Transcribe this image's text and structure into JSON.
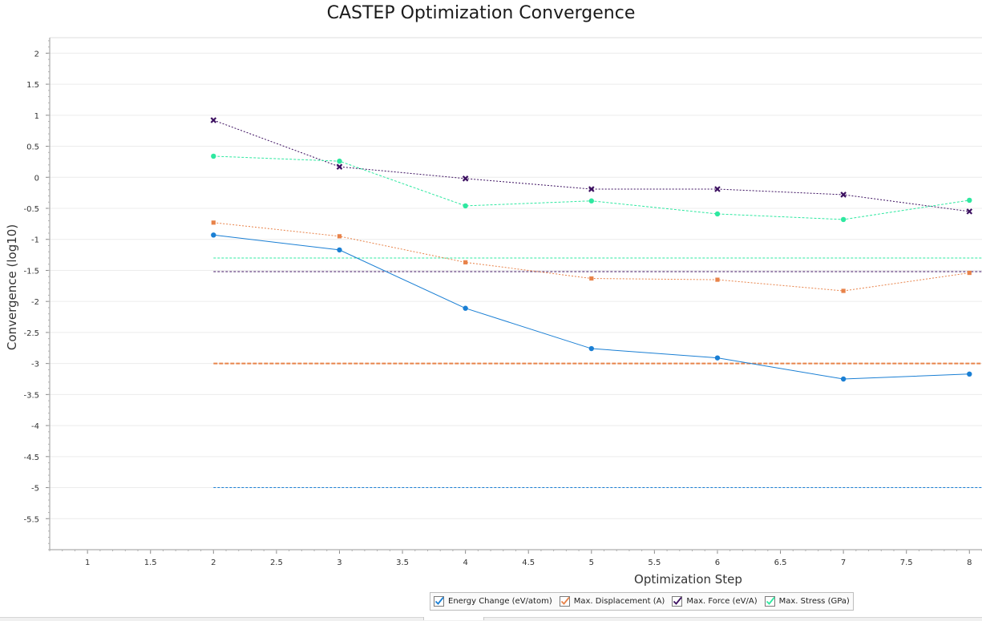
{
  "chart_data": {
    "type": "line",
    "title": "CASTEP Optimization Convergence",
    "xlabel": "Optimization Step",
    "ylabel": "Convergence (log10)",
    "xlim": [
      0.7,
      8.1
    ],
    "ylim": [
      -6.0,
      2.25
    ],
    "xticks": [
      "1",
      "1.5",
      "2",
      "2.5",
      "3",
      "3.5",
      "4",
      "4.5",
      "5",
      "5.5",
      "6",
      "6.5",
      "7",
      "7.5",
      "8"
    ],
    "yticks": [
      "2",
      "1.5",
      "1",
      "0.5",
      "0",
      "-0.5",
      "-1",
      "-1.5",
      "-2",
      "-2.5",
      "-3",
      "-3.5",
      "-4",
      "-4.5",
      "-5",
      "-5.5"
    ],
    "grid": "horizontal",
    "legend_position": "bottom",
    "x": [
      2,
      3,
      4,
      5,
      6,
      7,
      8
    ],
    "series": [
      {
        "name": "Energy Change (eV/atom)",
        "color": "#1a7fd4",
        "marker": "circle",
        "values": [
          -0.93,
          -1.17,
          -2.11,
          -2.76,
          -2.91,
          -3.25,
          -3.17
        ],
        "threshold": -5.0
      },
      {
        "name": "Max. Displacement (A)",
        "color": "#e8834a",
        "marker": "square",
        "values": [
          -0.73,
          -0.95,
          -1.37,
          -1.63,
          -1.65,
          -1.83,
          -1.54
        ],
        "threshold": -3.0
      },
      {
        "name": "Max. Force (eV/A)",
        "color": "#3c1060",
        "marker": "x",
        "values": [
          0.92,
          0.17,
          -0.02,
          -0.19,
          -0.19,
          -0.28,
          -0.55
        ],
        "threshold": -1.52
      },
      {
        "name": "Max. Stress (GPa)",
        "color": "#2ee8a0",
        "marker": "circle",
        "values": [
          0.34,
          0.26,
          -0.46,
          -0.38,
          -0.59,
          -0.68,
          -0.37
        ],
        "threshold": -1.3
      }
    ]
  }
}
